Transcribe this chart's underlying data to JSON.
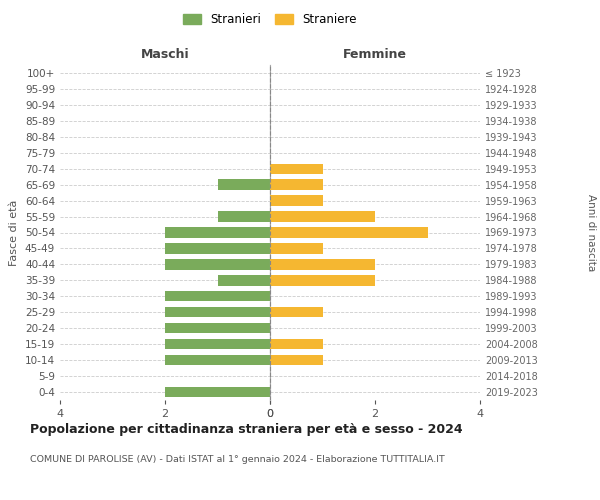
{
  "age_groups": [
    "100+",
    "95-99",
    "90-94",
    "85-89",
    "80-84",
    "75-79",
    "70-74",
    "65-69",
    "60-64",
    "55-59",
    "50-54",
    "45-49",
    "40-44",
    "35-39",
    "30-34",
    "25-29",
    "20-24",
    "15-19",
    "10-14",
    "5-9",
    "0-4"
  ],
  "birth_years": [
    "≤ 1923",
    "1924-1928",
    "1929-1933",
    "1934-1938",
    "1939-1943",
    "1944-1948",
    "1949-1953",
    "1954-1958",
    "1959-1963",
    "1964-1968",
    "1969-1973",
    "1974-1978",
    "1979-1983",
    "1984-1988",
    "1989-1993",
    "1994-1998",
    "1999-2003",
    "2004-2008",
    "2009-2013",
    "2014-2018",
    "2019-2023"
  ],
  "males": [
    0,
    0,
    0,
    0,
    0,
    0,
    0,
    1,
    0,
    1,
    2,
    2,
    2,
    1,
    2,
    2,
    2,
    2,
    2,
    0,
    2
  ],
  "females": [
    0,
    0,
    0,
    0,
    0,
    0,
    1,
    1,
    1,
    2,
    3,
    1,
    2,
    2,
    0,
    1,
    0,
    1,
    1,
    0,
    0
  ],
  "male_color": "#7aab5b",
  "female_color": "#f5b731",
  "male_label": "Stranieri",
  "female_label": "Straniere",
  "title": "Popolazione per cittadinanza straniera per età e sesso - 2024",
  "subtitle": "COMUNE DI PAROLISE (AV) - Dati ISTAT al 1° gennaio 2024 - Elaborazione TUTTITALIA.IT",
  "left_header": "Maschi",
  "right_header": "Femmine",
  "ylabel": "Fasce di età",
  "right_ylabel": "Anni di nascita",
  "xlim": 4,
  "background_color": "#ffffff",
  "grid_color": "#cccccc"
}
